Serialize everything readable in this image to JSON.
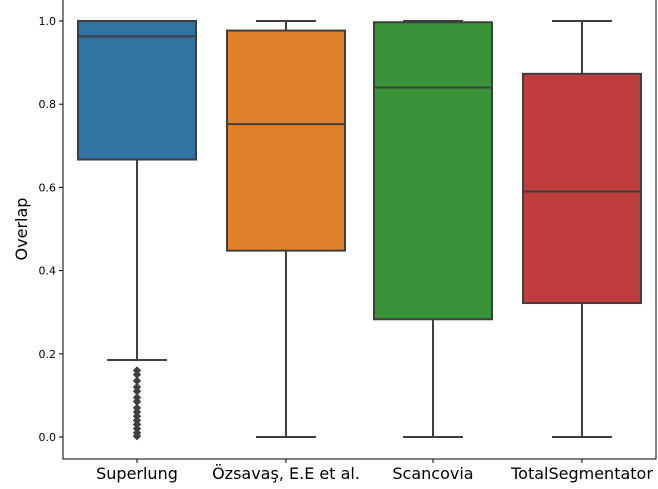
{
  "chart_data": {
    "type": "box",
    "ylabel": "Overlap",
    "xlabel": "",
    "title": "",
    "ylim": [
      -0.04,
      1.04
    ],
    "yticks": [
      "0.0",
      "0.2",
      "0.4",
      "0.6",
      "0.8",
      "1.0"
    ],
    "grid": false,
    "categories": [
      "Superlung",
      "Özsavaş, E.E et al.",
      "Scancovia",
      "TotalSegmentator"
    ],
    "colors": [
      "#3274a1",
      "#e1812c",
      "#3a923a",
      "#c03d3e"
    ],
    "boxes": [
      {
        "whisker_low": 0.185,
        "q1": 0.667,
        "median": 0.963,
        "q3": 1.0,
        "whisker_high": 1.0,
        "outliers": [
          0.16,
          0.15,
          0.135,
          0.12,
          0.11,
          0.095,
          0.085,
          0.07,
          0.06,
          0.05,
          0.04,
          0.03,
          0.02,
          0.01,
          0.002
        ]
      },
      {
        "whisker_low": 0.0,
        "q1": 0.448,
        "median": 0.752,
        "q3": 0.977,
        "whisker_high": 1.0,
        "outliers": []
      },
      {
        "whisker_low": 0.0,
        "q1": 0.283,
        "median": 0.84,
        "q3": 0.997,
        "whisker_high": 1.0,
        "outliers": []
      },
      {
        "whisker_low": 0.0,
        "q1": 0.322,
        "median": 0.59,
        "q3": 0.873,
        "whisker_high": 1.0,
        "outliers": []
      }
    ]
  }
}
